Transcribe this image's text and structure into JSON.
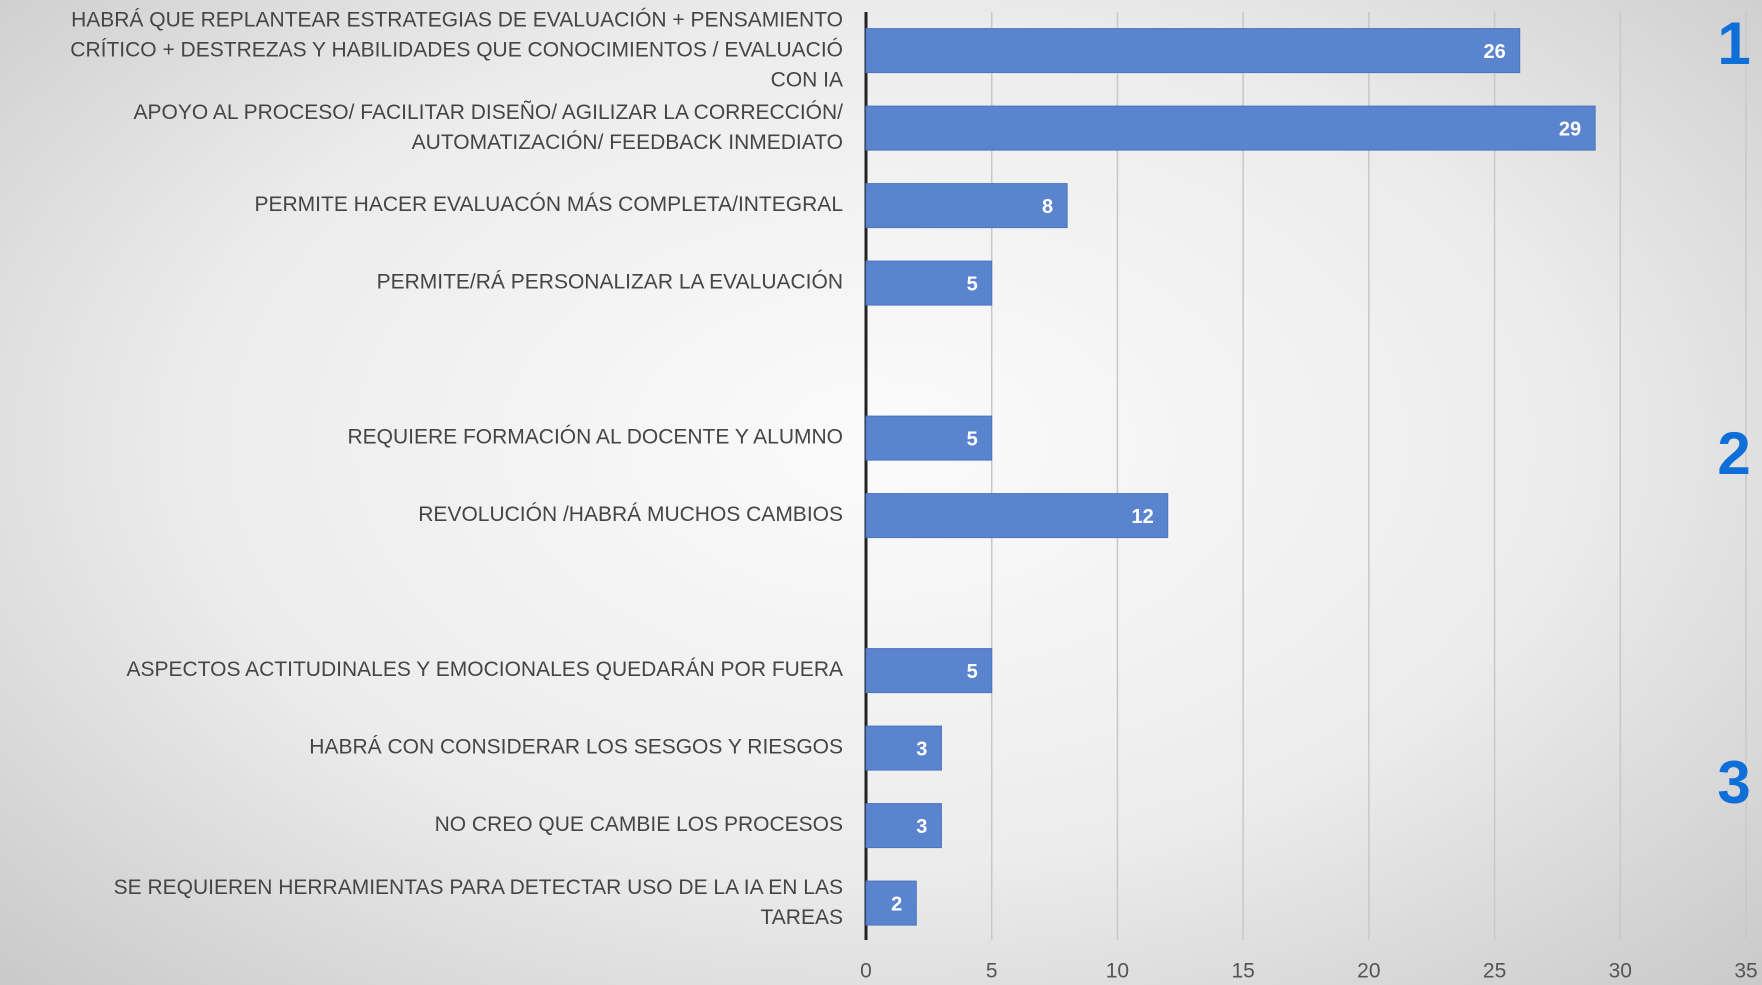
{
  "chart_data": {
    "type": "barh",
    "categories": [
      "HABRÁ QUE REPLANTEAR ESTRATEGIAS DE EVALUACIÓN + PENSAMIENTO\nCRÍTICO + DESTREZAS Y HABILIDADES QUE CONOCIMIENTOS / EVALUACIÓ\nCON IA",
      "APOYO AL PROCESO/ FACILITAR DISEÑO/ AGILIZAR LA CORRECCIÓN/\nAUTOMATIZACIÓN/ FEEDBACK INMEDIATO",
      "PERMITE HACER EVALUACÓN MÁS COMPLETA/INTEGRAL",
      "PERMITE/RÁ PERSONALIZAR LA EVALUACIÓN",
      null,
      "REQUIERE FORMACIÓN AL DOCENTE Y ALUMNO",
      "REVOLUCIÓN /HABRÁ MUCHOS CAMBIOS",
      null,
      "ASPECTOS ACTITUDINALES Y EMOCIONALES QUEDARÁN POR FUERA",
      "HABRÁ CON CONSIDERAR LOS SESGOS Y RIESGOS",
      "NO CREO QUE CAMBIE LOS PROCESOS",
      "SE REQUIEREN HERRAMIENTAS PARA DETECTAR USO DE LA IA EN LAS\nTAREAS"
    ],
    "values": [
      26,
      29,
      8,
      5,
      null,
      5,
      12,
      null,
      5,
      3,
      3,
      2
    ],
    "color": "#5b84cf",
    "xlim": [
      0,
      35
    ],
    "xticks": [
      0,
      5,
      10,
      15,
      20,
      25,
      30,
      35
    ],
    "grid": true,
    "annotations": [
      "1",
      "2",
      "3"
    ]
  }
}
